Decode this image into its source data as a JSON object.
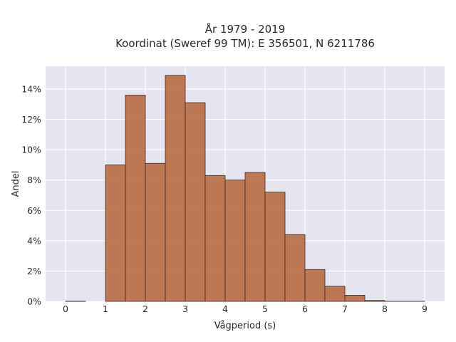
{
  "chart_data": {
    "type": "bar",
    "title_lines": [
      "År 1979 - 2019",
      "Koordinat (Sweref 99 TM): E 356501, N 6211786"
    ],
    "xlabel": "Vågperiod (s)",
    "ylabel": "Andel",
    "xlim": [
      -0.5,
      9.5
    ],
    "ylim": [
      0,
      0.155
    ],
    "x_ticks": [
      0,
      1,
      2,
      3,
      4,
      5,
      6,
      7,
      8,
      9
    ],
    "x_tick_labels": [
      "0",
      "1",
      "2",
      "3",
      "4",
      "5",
      "6",
      "7",
      "8",
      "9"
    ],
    "y_ticks": [
      0,
      0.02,
      0.04,
      0.06,
      0.08,
      0.1,
      0.12,
      0.14
    ],
    "y_tick_labels": [
      "0%",
      "2%",
      "4%",
      "6%",
      "8%",
      "10%",
      "12%",
      "14%"
    ],
    "bin_width": 0.5,
    "bins": [
      {
        "x0": 0.0,
        "value": 0.0002
      },
      {
        "x0": 0.5,
        "value": 0.0
      },
      {
        "x0": 1.0,
        "value": 0.09
      },
      {
        "x0": 1.5,
        "value": 0.136
      },
      {
        "x0": 2.0,
        "value": 0.091
      },
      {
        "x0": 2.5,
        "value": 0.149
      },
      {
        "x0": 3.0,
        "value": 0.131
      },
      {
        "x0": 3.5,
        "value": 0.083
      },
      {
        "x0": 4.0,
        "value": 0.08
      },
      {
        "x0": 4.5,
        "value": 0.085
      },
      {
        "x0": 5.0,
        "value": 0.072
      },
      {
        "x0": 5.5,
        "value": 0.044
      },
      {
        "x0": 6.0,
        "value": 0.021
      },
      {
        "x0": 6.5,
        "value": 0.01
      },
      {
        "x0": 7.0,
        "value": 0.004
      },
      {
        "x0": 7.5,
        "value": 0.0006
      },
      {
        "x0": 8.0,
        "value": 0.0001
      },
      {
        "x0": 8.5,
        "value": 0.0001
      }
    ],
    "grid": true,
    "colors": {
      "bar": "#b5653a",
      "plot_background": "#e5e5ef",
      "grid": "#ffffff"
    }
  }
}
